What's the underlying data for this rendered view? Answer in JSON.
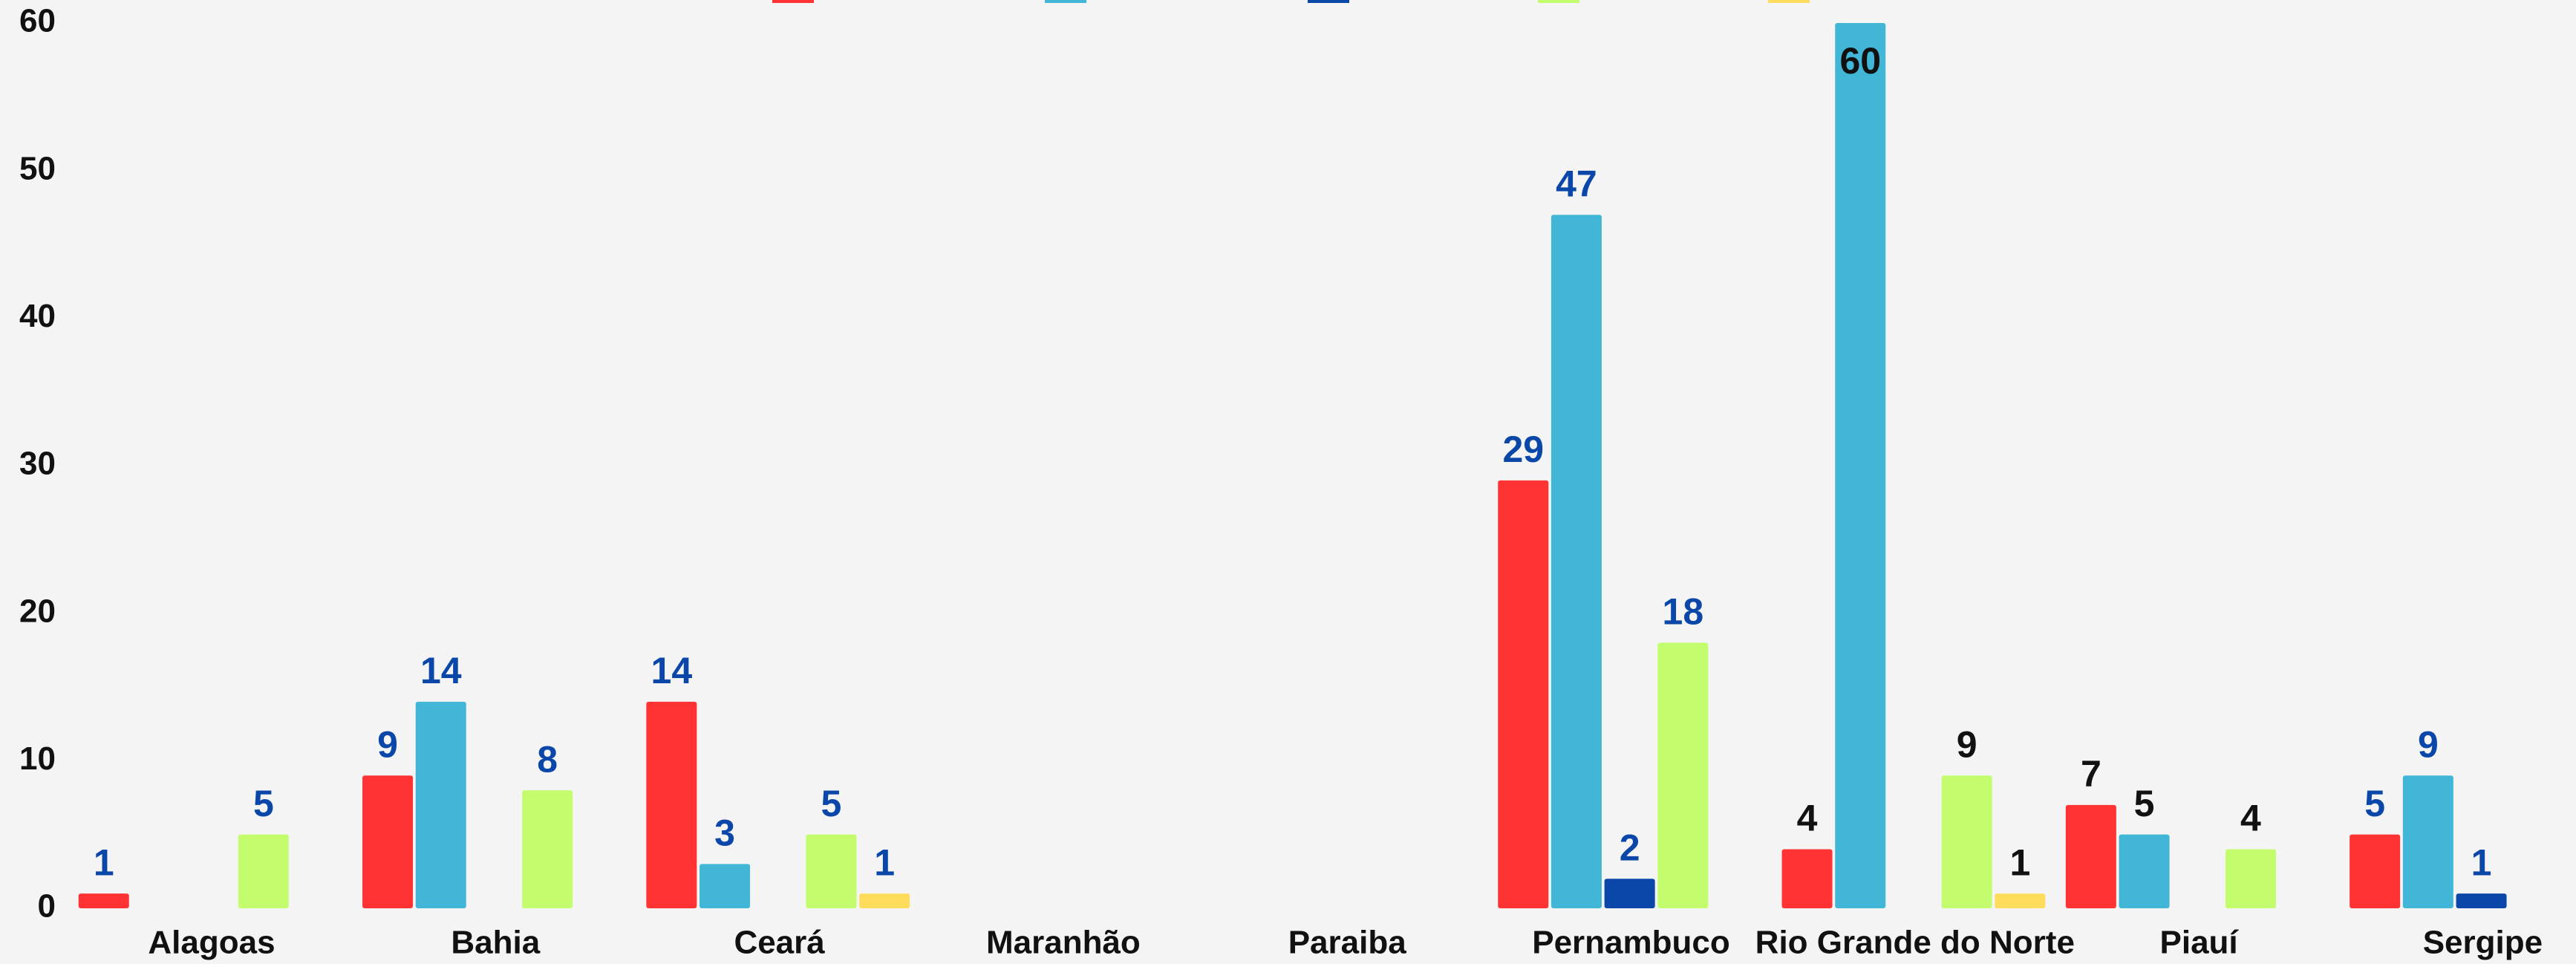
{
  "chart_data": {
    "type": "bar",
    "categories": [
      "Alagoas",
      "Bahia",
      "Ceará",
      "Maranhão",
      "Paraiba",
      "Pernambuco",
      "Rio Grande do Norte",
      "Piauí",
      "Sergipe"
    ],
    "series": [
      {
        "color": "#ff3333",
        "values": [
          1,
          9,
          14,
          null,
          null,
          29,
          4,
          7,
          5
        ]
      },
      {
        "color": "#42b6d6",
        "values": [
          null,
          14,
          3,
          null,
          null,
          47,
          60,
          5,
          9
        ]
      },
      {
        "color": "#0a47a9",
        "values": [
          null,
          null,
          null,
          null,
          null,
          2,
          null,
          null,
          1
        ]
      },
      {
        "color": "#c3fc6c",
        "values": [
          5,
          8,
          5,
          null,
          null,
          18,
          9,
          4,
          null
        ]
      },
      {
        "color": "#ffdd5c",
        "values": [
          null,
          null,
          1,
          null,
          null,
          null,
          1,
          null,
          null
        ]
      }
    ],
    "label_colors": [
      "#0a47a9",
      "#0a47a9",
      "#0a47a9",
      "#0a47a9",
      "#0a47a9",
      "#0a47a9",
      "#111111",
      "#111111",
      "#0a47a9"
    ],
    "ylim": [
      0,
      60
    ],
    "yticks": [
      0,
      10,
      20,
      30,
      40,
      50,
      60
    ],
    "grid": false
  }
}
